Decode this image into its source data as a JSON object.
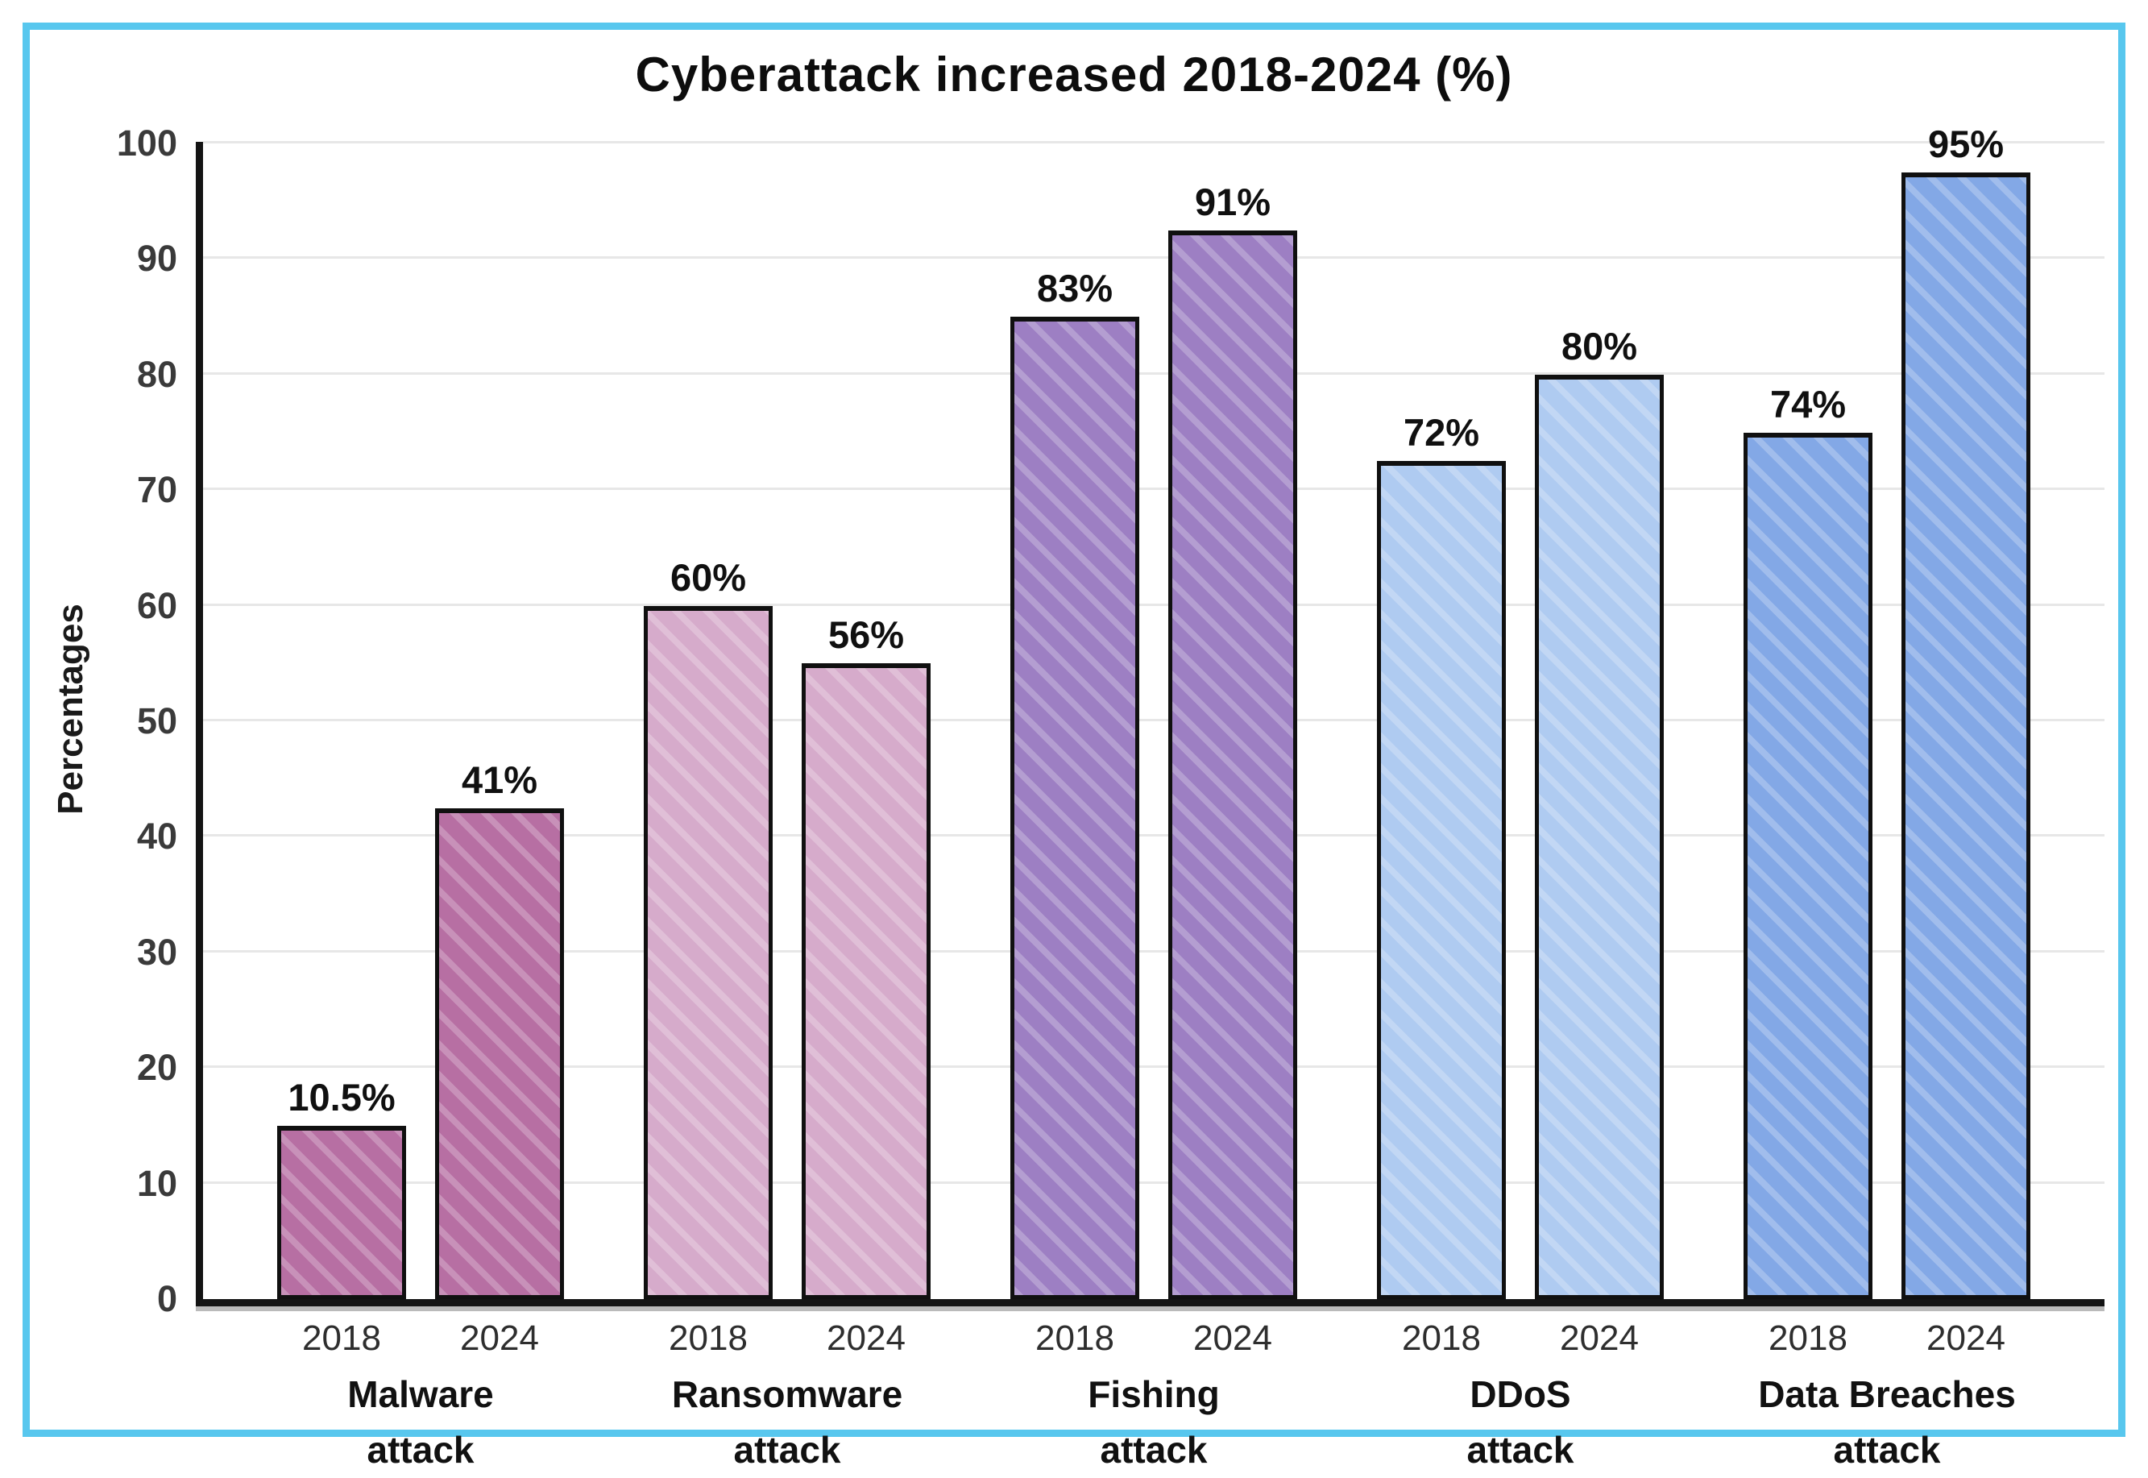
{
  "frame_color": "#58c7ee",
  "chart_data": {
    "type": "bar",
    "title": "Cyberattack increased 2018-2024 (%)",
    "ylabel": "Percentages",
    "ylim": [
      0,
      100
    ],
    "yticks": [
      0,
      10,
      20,
      30,
      40,
      50,
      60,
      70,
      80,
      90,
      100
    ],
    "grid": true,
    "legend_position": "none",
    "categories": [
      "Malware attack",
      "Ransomware attack",
      "Fishing attack",
      "DDoS attack",
      "Data Breaches attack"
    ],
    "series": [
      {
        "name": "2018",
        "values": [
          10.5,
          60,
          83,
          72,
          74
        ]
      },
      {
        "name": "2024",
        "values": [
          41,
          56,
          91,
          80,
          95
        ]
      }
    ],
    "groups": [
      {
        "name_lines": [
          "Malware",
          "attack"
        ],
        "color": "#b76fa3",
        "bars": [
          {
            "year": "2018",
            "label": "10.5%",
            "value": 10.5,
            "drawn": 15
          },
          {
            "year": "2024",
            "label": "41%",
            "value": 41,
            "drawn": 42.5
          }
        ]
      },
      {
        "name_lines": [
          "Ransomware",
          "attack"
        ],
        "color": "#d6abcb",
        "bars": [
          {
            "year": "2018",
            "label": "60%",
            "value": 60,
            "drawn": 60
          },
          {
            "year": "2024",
            "label": "56%",
            "value": 56,
            "drawn": 55
          }
        ]
      },
      {
        "name_lines": [
          "Fishing",
          "attack"
        ],
        "color": "#9d7fc3",
        "bars": [
          {
            "year": "2018",
            "label": "83%",
            "value": 83,
            "drawn": 85
          },
          {
            "year": "2024",
            "label": "91%",
            "value": 91,
            "drawn": 92.5
          }
        ]
      },
      {
        "name_lines": [
          "DDoS",
          "attack"
        ],
        "color": "#afcbf1",
        "bars": [
          {
            "year": "2018",
            "label": "72%",
            "value": 72,
            "drawn": 72.5
          },
          {
            "year": "2024",
            "label": "80%",
            "value": 80,
            "drawn": 80
          }
        ]
      },
      {
        "name_lines": [
          "Data Breaches",
          "attack"
        ],
        "color": "#83a8e6",
        "bars": [
          {
            "year": "2018",
            "label": "74%",
            "value": 74,
            "drawn": 75
          },
          {
            "year": "2024",
            "label": "95%",
            "value": 95,
            "drawn": 97.5
          }
        ]
      }
    ]
  }
}
